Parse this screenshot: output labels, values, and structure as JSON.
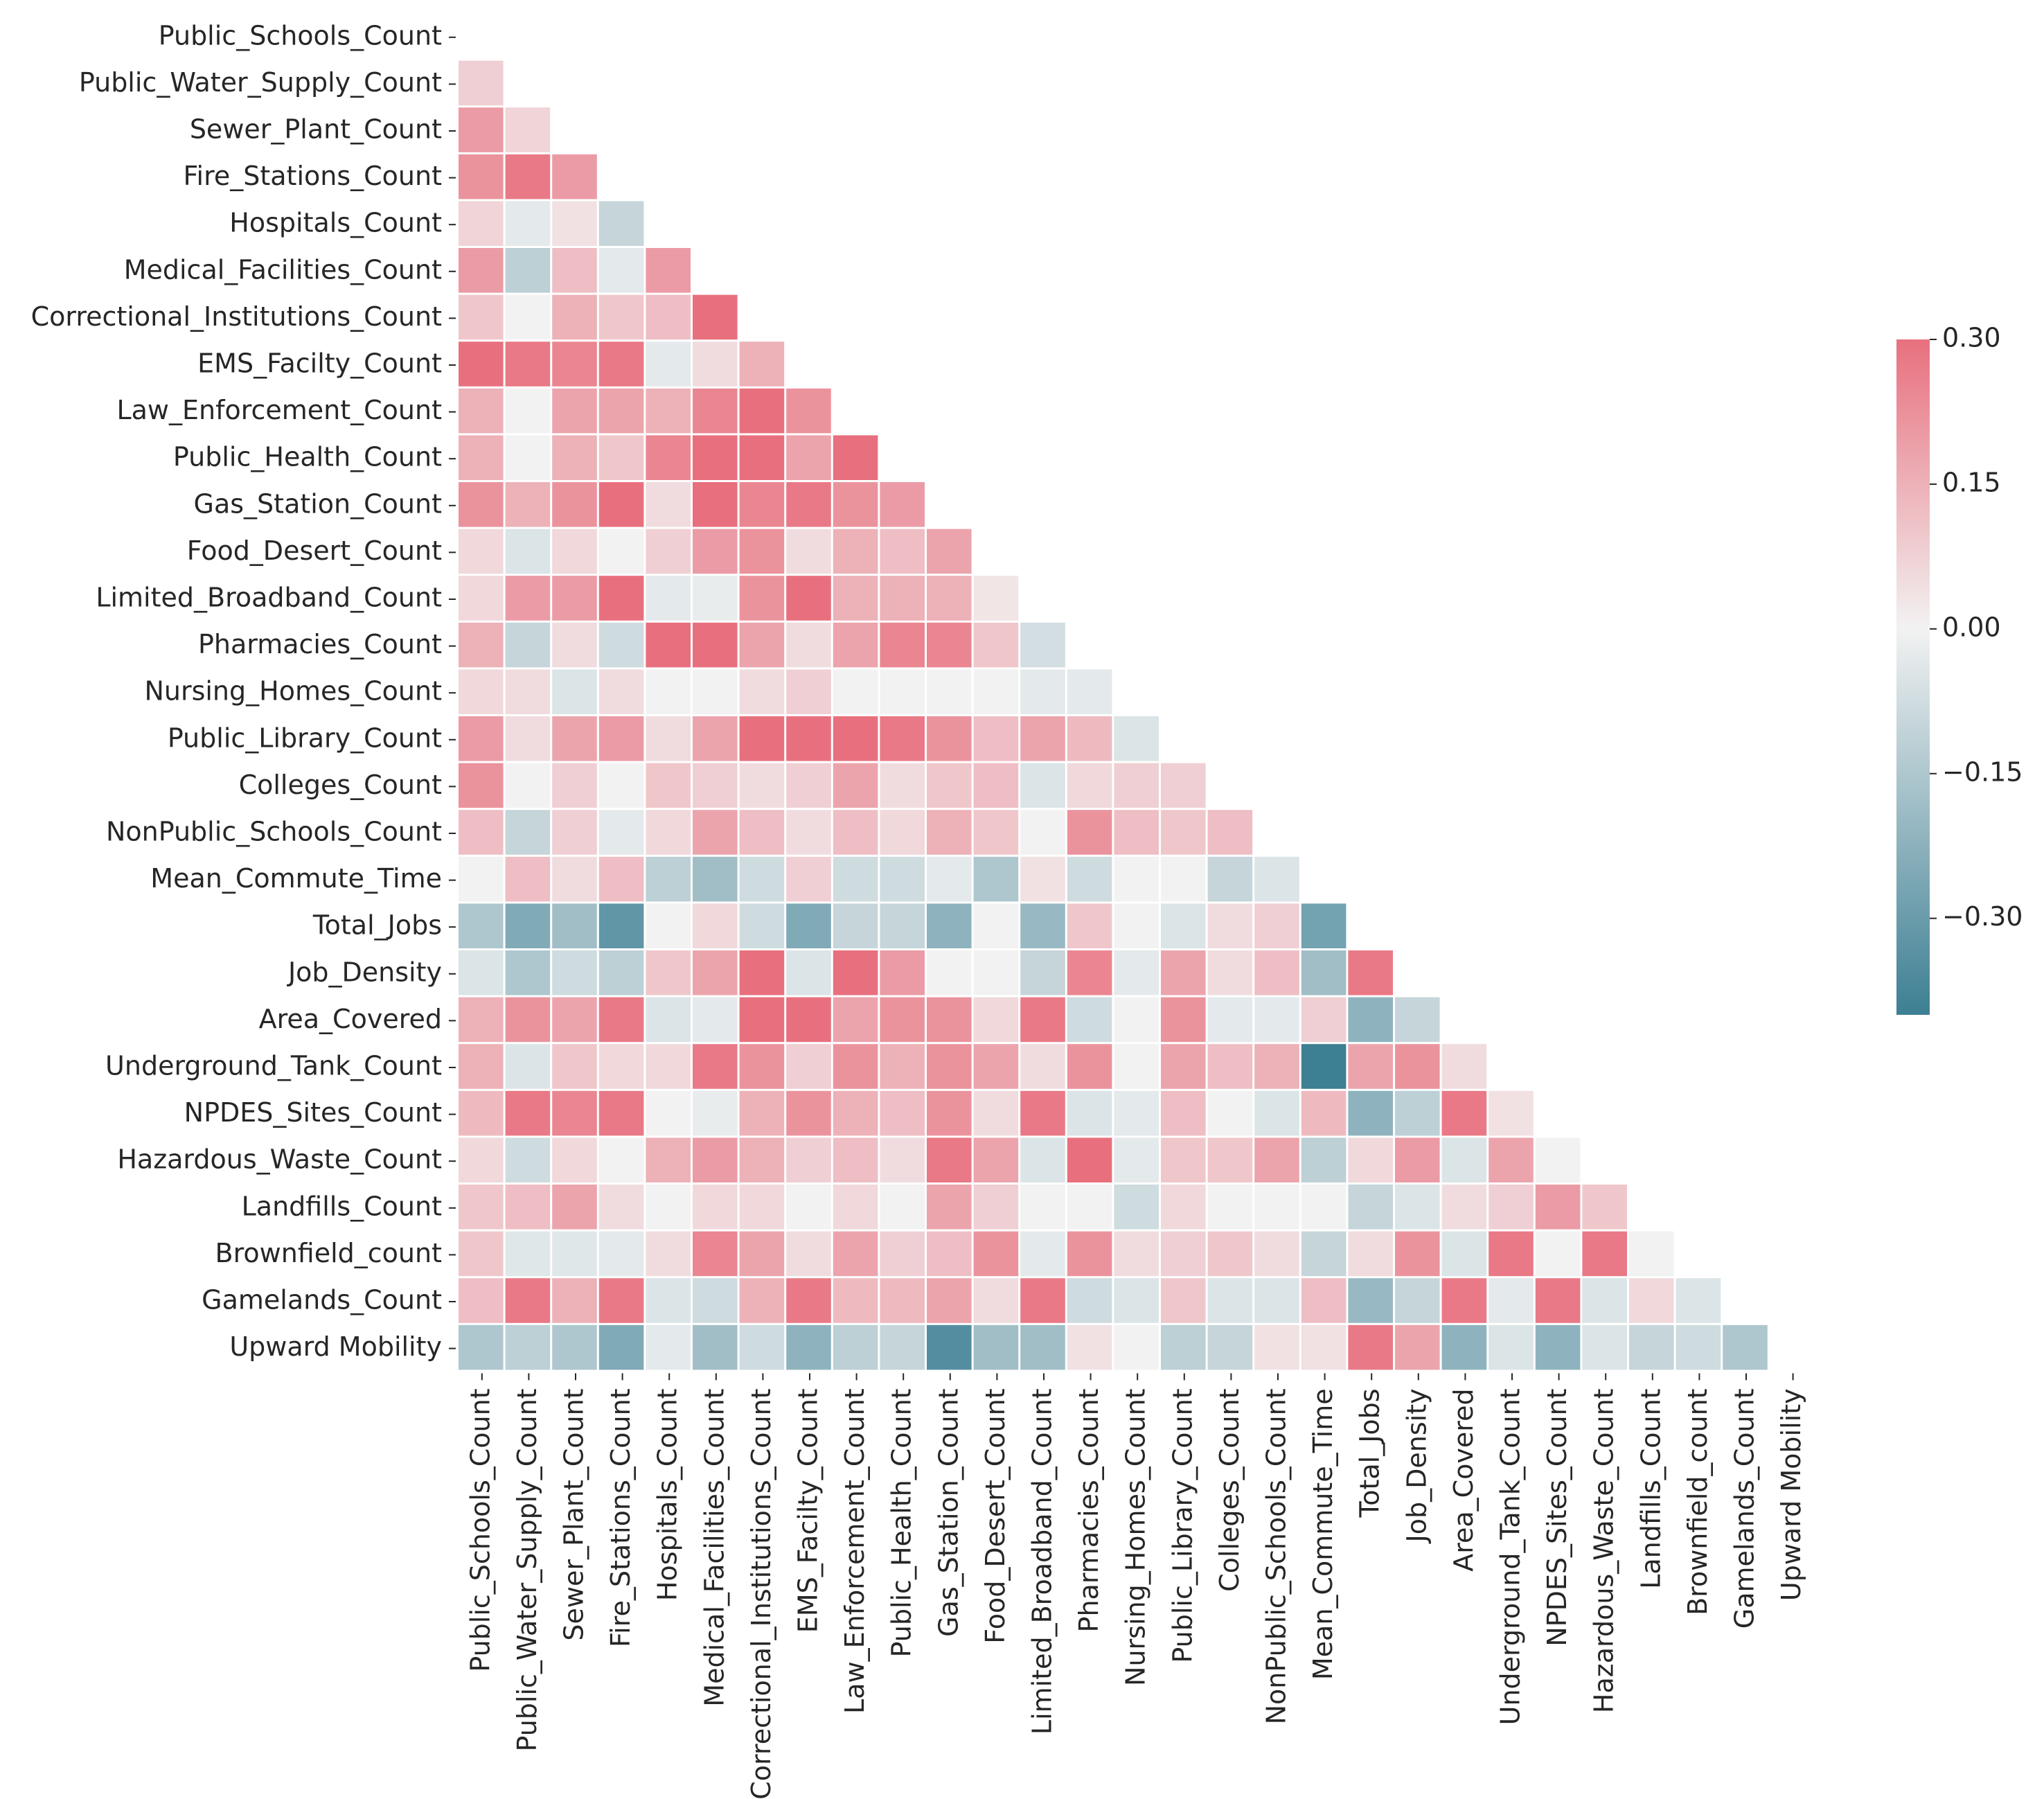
{
  "chart_data": {
    "type": "heatmap",
    "variables": [
      "Public_Schools_Count",
      "Public_Water_Supply_Count",
      "Sewer_Plant_Count",
      "Fire_Stations_Count",
      "Hospitals_Count",
      "Medical_Facilities_Count",
      "Correctional_Institutions_Count",
      "EMS_Facilty_Count",
      "Law_Enforcement_Count",
      "Public_Health_Count",
      "Gas_Station_Count",
      "Food_Desert_Count",
      "Limited_Broadband_Count",
      "Pharmacies_Count",
      "Nursing_Homes_Count",
      "Public_Library_Count",
      "Colleges_Count",
      "NonPublic_Schools_Count",
      "Mean_Commute_Time",
      "Total_Jobs",
      "Job_Density",
      "Area_Covered",
      "Underground_Tank_Count",
      "NPDES_Sites_Count",
      "Hazardous_Waste_Count",
      "Landfills_Count",
      "Brownfield_count",
      "Gamelands_Count",
      "Upward Mobility"
    ],
    "mask": "upper-triangle-and-diagonal",
    "lower_triangle_values": [
      [],
      [
        0.08
      ],
      [
        0.2,
        0.07
      ],
      [
        0.22,
        0.28,
        0.2
      ],
      [
        0.07,
        -0.03,
        0.04,
        -0.1
      ],
      [
        0.2,
        -0.12,
        0.12,
        -0.03,
        0.2
      ],
      [
        0.1,
        0.0,
        0.15,
        0.1,
        0.12,
        0.3
      ],
      [
        0.3,
        0.28,
        0.25,
        0.28,
        -0.03,
        0.05,
        0.15
      ],
      [
        0.15,
        0.0,
        0.18,
        0.18,
        0.15,
        0.25,
        0.3,
        0.22
      ],
      [
        0.15,
        0.0,
        0.15,
        0.1,
        0.25,
        0.3,
        0.3,
        0.18,
        0.3
      ],
      [
        0.22,
        0.15,
        0.22,
        0.3,
        0.05,
        0.3,
        0.25,
        0.28,
        0.22,
        0.2
      ],
      [
        0.06,
        -0.05,
        0.06,
        0.0,
        0.08,
        0.2,
        0.22,
        0.05,
        0.15,
        0.12,
        0.18
      ],
      [
        0.06,
        0.2,
        0.2,
        0.3,
        -0.03,
        -0.02,
        0.22,
        0.3,
        0.15,
        0.15,
        0.15,
        0.03
      ],
      [
        0.15,
        -0.1,
        0.05,
        -0.08,
        0.3,
        0.3,
        0.18,
        0.05,
        0.18,
        0.25,
        0.25,
        0.1,
        -0.07
      ],
      [
        0.06,
        0.05,
        -0.05,
        0.05,
        0.0,
        0.0,
        0.05,
        0.08,
        0.0,
        0.0,
        0.0,
        0.0,
        -0.03,
        -0.03
      ],
      [
        0.2,
        0.05,
        0.18,
        0.2,
        0.05,
        0.18,
        0.3,
        0.3,
        0.3,
        0.28,
        0.22,
        0.12,
        0.18,
        0.13,
        -0.05
      ],
      [
        0.22,
        0.0,
        0.08,
        0.0,
        0.1,
        0.08,
        0.05,
        0.08,
        0.18,
        0.05,
        0.1,
        0.12,
        -0.05,
        0.06,
        0.08,
        0.08
      ],
      [
        0.12,
        -0.1,
        0.08,
        -0.03,
        0.06,
        0.18,
        0.12,
        0.05,
        0.12,
        0.06,
        0.15,
        0.1,
        0.0,
        0.22,
        0.12,
        0.1,
        0.12
      ],
      [
        0.0,
        0.12,
        0.05,
        0.12,
        -0.12,
        -0.18,
        -0.08,
        0.08,
        -0.08,
        -0.08,
        -0.03,
        -0.15,
        0.04,
        -0.08,
        0.0,
        0.0,
        -0.1,
        -0.05
      ],
      [
        -0.15,
        -0.25,
        -0.18,
        -0.32,
        0.0,
        0.06,
        -0.08,
        -0.25,
        -0.1,
        -0.1,
        -0.22,
        0.0,
        -0.2,
        0.1,
        0.0,
        -0.05,
        0.05,
        0.08,
        -0.28
      ],
      [
        -0.05,
        -0.15,
        -0.08,
        -0.12,
        0.1,
        0.18,
        0.3,
        -0.05,
        0.3,
        0.2,
        0.0,
        0.0,
        -0.1,
        0.25,
        -0.03,
        0.18,
        0.05,
        0.12,
        -0.18,
        0.28
      ],
      [
        0.15,
        0.22,
        0.18,
        0.28,
        -0.05,
        -0.03,
        0.3,
        0.3,
        0.18,
        0.22,
        0.22,
        0.06,
        0.28,
        -0.08,
        0.0,
        0.22,
        -0.03,
        -0.03,
        0.08,
        -0.22,
        -0.1
      ],
      [
        0.15,
        -0.05,
        0.1,
        0.06,
        0.06,
        0.28,
        0.22,
        0.08,
        0.22,
        0.15,
        0.22,
        0.18,
        0.05,
        0.22,
        0.0,
        0.18,
        0.12,
        0.15,
        -0.4,
        0.18,
        0.22,
        0.05
      ],
      [
        0.13,
        0.28,
        0.25,
        0.28,
        0.0,
        -0.02,
        0.15,
        0.22,
        0.15,
        0.12,
        0.22,
        0.05,
        0.28,
        -0.05,
        -0.03,
        0.12,
        0.0,
        -0.05,
        0.13,
        -0.22,
        -0.12,
        0.28,
        0.04
      ],
      [
        0.06,
        -0.08,
        0.06,
        0.0,
        0.15,
        0.2,
        0.15,
        0.08,
        0.12,
        0.05,
        0.28,
        0.18,
        -0.05,
        0.3,
        -0.03,
        0.1,
        0.1,
        0.18,
        -0.12,
        0.06,
        0.2,
        -0.05,
        0.18,
        0.0
      ],
      [
        0.1,
        0.12,
        0.18,
        0.05,
        0.0,
        0.06,
        0.06,
        0.0,
        0.06,
        0.0,
        0.18,
        0.08,
        0.0,
        0.0,
        -0.08,
        0.06,
        0.0,
        0.0,
        0.0,
        -0.1,
        -0.05,
        0.05,
        0.08,
        0.2,
        0.1
      ],
      [
        0.1,
        -0.04,
        -0.04,
        -0.03,
        0.05,
        0.25,
        0.18,
        0.05,
        0.18,
        0.08,
        0.12,
        0.22,
        -0.03,
        0.22,
        0.05,
        0.08,
        0.1,
        0.05,
        -0.1,
        0.05,
        0.22,
        -0.05,
        0.28,
        0.0,
        0.28,
        0.0
      ],
      [
        0.12,
        0.28,
        0.15,
        0.28,
        -0.05,
        -0.08,
        0.15,
        0.28,
        0.13,
        0.13,
        0.18,
        0.05,
        0.28,
        -0.08,
        -0.05,
        0.1,
        -0.05,
        -0.05,
        0.12,
        -0.2,
        -0.1,
        0.28,
        -0.03,
        0.28,
        -0.05,
        0.06,
        -0.05
      ],
      [
        -0.15,
        -0.12,
        -0.15,
        -0.25,
        -0.03,
        -0.18,
        -0.08,
        -0.22,
        -0.12,
        -0.1,
        -0.35,
        -0.18,
        -0.18,
        0.04,
        0.0,
        -0.12,
        -0.1,
        0.04,
        0.04,
        0.28,
        0.18,
        -0.22,
        -0.05,
        -0.22,
        -0.05,
        -0.1,
        -0.08,
        -0.15
      ]
    ],
    "colorbar": {
      "vmin": -0.4,
      "vmax": 0.3,
      "ticks": [
        0.3,
        0.15,
        0.0,
        -0.15,
        -0.3
      ],
      "tick_labels": [
        "0.30",
        "0.15",
        "0.00",
        "−0.15",
        "−0.30"
      ],
      "palette": {
        "low": "#3d7f93",
        "mid": "#f2f2f2",
        "high": "#e8707e"
      }
    },
    "legend": "colorbar-right"
  }
}
